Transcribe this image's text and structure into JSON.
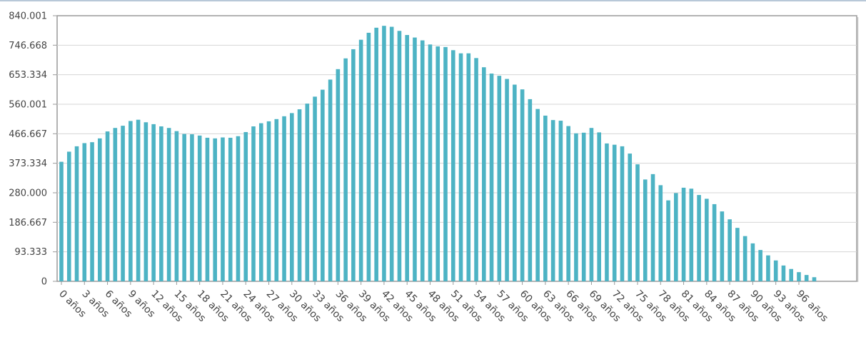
{
  "chart_data": {
    "type": "bar",
    "title": "",
    "xlabel": "",
    "ylabel": "",
    "ylim": [
      0,
      840.001
    ],
    "y_ticks": [
      "0",
      "93.333",
      "186.667",
      "280.000",
      "373.334",
      "466.667",
      "560.001",
      "653.334",
      "746.668",
      "840.001"
    ],
    "y_tick_values": [
      0,
      93.333,
      186.667,
      280.0,
      373.334,
      466.667,
      560.001,
      653.334,
      746.668,
      840.001
    ],
    "x_tick_labels": [
      "0 años",
      "3 años",
      "6 años",
      "9 años",
      "12 años",
      "15 años",
      "18 años",
      "21 años",
      "24 años",
      "27 años",
      "30 años",
      "33 años",
      "36 años",
      "39 años",
      "42 años",
      "45 años",
      "48 años",
      "51 años",
      "54 años",
      "57 años",
      "60 años",
      "63 años",
      "66 años",
      "69 años",
      "72 años",
      "75 años",
      "78 años",
      "81 años",
      "84 años",
      "87 años",
      "90 años",
      "93 años",
      "96 años"
    ],
    "x_tick_every": 3,
    "grid": "horizontal",
    "bar_color": "#4db3c4",
    "values": [
      378,
      410,
      427,
      437,
      440,
      452,
      474,
      485,
      492,
      507,
      511,
      503,
      497,
      490,
      485,
      475,
      466,
      465,
      461,
      454,
      452,
      455,
      454,
      459,
      472,
      490,
      500,
      506,
      513,
      522,
      532,
      544,
      562,
      584,
      606,
      638,
      671,
      705,
      734,
      764,
      786,
      802,
      808,
      805,
      792,
      779,
      771,
      762,
      749,
      743,
      741,
      731,
      721,
      721,
      706,
      677,
      657,
      650,
      640,
      622,
      607,
      576,
      545,
      524,
      510,
      508,
      491,
      468,
      470,
      485,
      471,
      436,
      432,
      427,
      404,
      370,
      322,
      339,
      304,
      256,
      279,
      296,
      293,
      273,
      261,
      244,
      221,
      196,
      169,
      143,
      120,
      99,
      82,
      66,
      50,
      39,
      29,
      20,
      13
    ]
  }
}
